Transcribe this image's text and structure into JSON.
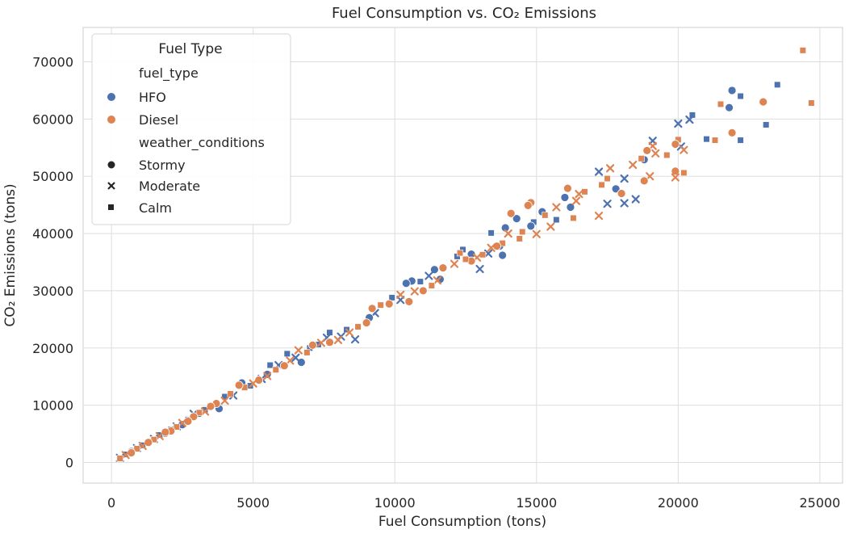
{
  "chart_data": {
    "type": "scatter",
    "title": "Fuel Consumption vs. CO₂ Emissions",
    "xlabel": "Fuel Consumption (tons)",
    "ylabel": "CO₂ Emissions (tons)",
    "xlim": [
      -1000,
      25800
    ],
    "ylim": [
      -3600,
      76000
    ],
    "xticks": [
      0,
      5000,
      10000,
      15000,
      20000,
      25000
    ],
    "yticks": [
      0,
      10000,
      20000,
      30000,
      40000,
      50000,
      60000,
      70000
    ],
    "grid": true,
    "legend": {
      "title": "Fuel Type",
      "placement": "top-left",
      "hue_title": "fuel_type",
      "style_title": "weather_conditions",
      "hue_entries": [
        {
          "label": "HFO",
          "color": "#4c72b0"
        },
        {
          "label": "Diesel",
          "color": "#dd8452"
        }
      ],
      "style_entries": [
        {
          "label": "Stormy",
          "marker": "circle"
        },
        {
          "label": "Moderate",
          "marker": "x"
        },
        {
          "label": "Calm",
          "marker": "square"
        }
      ]
    },
    "series": [
      {
        "fuel_type": "HFO",
        "color": "#4c72b0",
        "points": [
          {
            "x": 21900,
            "y": 65000,
            "w": "Stormy"
          },
          {
            "x": 21800,
            "y": 62000,
            "w": "Stormy"
          },
          {
            "x": 23100,
            "y": 59000,
            "w": "Calm"
          },
          {
            "x": 23500,
            "y": 66000,
            "w": "Calm"
          },
          {
            "x": 22200,
            "y": 64000,
            "w": "Calm"
          },
          {
            "x": 22200,
            "y": 56300,
            "w": "Calm"
          },
          {
            "x": 21000,
            "y": 56500,
            "w": "Calm"
          },
          {
            "x": 20500,
            "y": 60700,
            "w": "Calm"
          },
          {
            "x": 20400,
            "y": 59900,
            "w": "Moderate"
          },
          {
            "x": 20000,
            "y": 59200,
            "w": "Moderate"
          },
          {
            "x": 20100,
            "y": 55200,
            "w": "Moderate"
          },
          {
            "x": 19100,
            "y": 56200,
            "w": "Moderate"
          },
          {
            "x": 18800,
            "y": 52900,
            "w": "Stormy"
          },
          {
            "x": 17500,
            "y": 45200,
            "w": "Moderate"
          },
          {
            "x": 17800,
            "y": 47800,
            "w": "Stormy"
          },
          {
            "x": 17200,
            "y": 50800,
            "w": "Moderate"
          },
          {
            "x": 18100,
            "y": 49600,
            "w": "Moderate"
          },
          {
            "x": 18100,
            "y": 45300,
            "w": "Moderate"
          },
          {
            "x": 18500,
            "y": 46000,
            "w": "Moderate"
          },
          {
            "x": 16200,
            "y": 44600,
            "w": "Stormy"
          },
          {
            "x": 16000,
            "y": 46300,
            "w": "Stormy"
          },
          {
            "x": 15700,
            "y": 42400,
            "w": "Calm"
          },
          {
            "x": 15200,
            "y": 43800,
            "w": "Stormy"
          },
          {
            "x": 14900,
            "y": 42000,
            "w": "Calm"
          },
          {
            "x": 14800,
            "y": 41300,
            "w": "Stormy"
          },
          {
            "x": 14300,
            "y": 42600,
            "w": "Stormy"
          },
          {
            "x": 13900,
            "y": 41000,
            "w": "Stormy"
          },
          {
            "x": 13700,
            "y": 37800,
            "w": "Stormy"
          },
          {
            "x": 13800,
            "y": 36200,
            "w": "Stormy"
          },
          {
            "x": 13400,
            "y": 40100,
            "w": "Calm"
          },
          {
            "x": 13300,
            "y": 36500,
            "w": "Moderate"
          },
          {
            "x": 12700,
            "y": 36400,
            "w": "Stormy"
          },
          {
            "x": 12400,
            "y": 37200,
            "w": "Calm"
          },
          {
            "x": 13000,
            "y": 33800,
            "w": "Moderate"
          },
          {
            "x": 12200,
            "y": 36000,
            "w": "Calm"
          },
          {
            "x": 11600,
            "y": 32000,
            "w": "Stormy"
          },
          {
            "x": 11400,
            "y": 33700,
            "w": "Stormy"
          },
          {
            "x": 11200,
            "y": 32600,
            "w": "Moderate"
          },
          {
            "x": 10600,
            "y": 31700,
            "w": "Stormy"
          },
          {
            "x": 10900,
            "y": 31600,
            "w": "Calm"
          },
          {
            "x": 10400,
            "y": 31300,
            "w": "Stormy"
          },
          {
            "x": 10200,
            "y": 28400,
            "w": "Moderate"
          },
          {
            "x": 9900,
            "y": 28800,
            "w": "Calm"
          },
          {
            "x": 9300,
            "y": 26100,
            "w": "Moderate"
          },
          {
            "x": 9100,
            "y": 25300,
            "w": "Stormy"
          },
          {
            "x": 8300,
            "y": 23200,
            "w": "Calm"
          },
          {
            "x": 8100,
            "y": 22000,
            "w": "Moderate"
          },
          {
            "x": 8600,
            "y": 21500,
            "w": "Moderate"
          },
          {
            "x": 7700,
            "y": 22700,
            "w": "Calm"
          },
          {
            "x": 7600,
            "y": 21800,
            "w": "Moderate"
          },
          {
            "x": 7300,
            "y": 20600,
            "w": "Calm"
          },
          {
            "x": 7000,
            "y": 20000,
            "w": "Calm"
          },
          {
            "x": 6700,
            "y": 17500,
            "w": "Stormy"
          },
          {
            "x": 6500,
            "y": 18300,
            "w": "Moderate"
          },
          {
            "x": 6200,
            "y": 19000,
            "w": "Calm"
          },
          {
            "x": 5900,
            "y": 17000,
            "w": "Moderate"
          },
          {
            "x": 5600,
            "y": 17000,
            "w": "Calm"
          },
          {
            "x": 5500,
            "y": 15400,
            "w": "Stormy"
          },
          {
            "x": 5300,
            "y": 14600,
            "w": "Moderate"
          },
          {
            "x": 4900,
            "y": 13400,
            "w": "Calm"
          },
          {
            "x": 4600,
            "y": 13900,
            "w": "Stormy"
          },
          {
            "x": 4300,
            "y": 11700,
            "w": "Moderate"
          },
          {
            "x": 4000,
            "y": 11500,
            "w": "Calm"
          },
          {
            "x": 3800,
            "y": 9400,
            "w": "Stormy"
          },
          {
            "x": 3500,
            "y": 9900,
            "w": "Stormy"
          },
          {
            "x": 3300,
            "y": 9200,
            "w": "Calm"
          },
          {
            "x": 3100,
            "y": 8600,
            "w": "Stormy"
          },
          {
            "x": 2900,
            "y": 8500,
            "w": "Moderate"
          },
          {
            "x": 2700,
            "y": 7500,
            "w": "Calm"
          },
          {
            "x": 2500,
            "y": 6600,
            "w": "Stormy"
          },
          {
            "x": 2300,
            "y": 6300,
            "w": "Moderate"
          },
          {
            "x": 2100,
            "y": 5800,
            "w": "Calm"
          },
          {
            "x": 1900,
            "y": 5100,
            "w": "Stormy"
          },
          {
            "x": 1700,
            "y": 4800,
            "w": "Calm"
          },
          {
            "x": 1500,
            "y": 4100,
            "w": "Moderate"
          },
          {
            "x": 1300,
            "y": 3600,
            "w": "Stormy"
          },
          {
            "x": 1100,
            "y": 3000,
            "w": "Calm"
          },
          {
            "x": 900,
            "y": 2500,
            "w": "Moderate"
          },
          {
            "x": 700,
            "y": 1900,
            "w": "Stormy"
          },
          {
            "x": 500,
            "y": 1400,
            "w": "Calm"
          },
          {
            "x": 300,
            "y": 800,
            "w": "Moderate"
          }
        ]
      },
      {
        "fuel_type": "Diesel",
        "color": "#dd8452",
        "points": [
          {
            "x": 24400,
            "y": 72000,
            "w": "Calm"
          },
          {
            "x": 24700,
            "y": 62800,
            "w": "Calm"
          },
          {
            "x": 23000,
            "y": 63000,
            "w": "Stormy"
          },
          {
            "x": 21500,
            "y": 62600,
            "w": "Calm"
          },
          {
            "x": 21300,
            "y": 56300,
            "w": "Calm"
          },
          {
            "x": 21900,
            "y": 57600,
            "w": "Stormy"
          },
          {
            "x": 20200,
            "y": 50600,
            "w": "Calm"
          },
          {
            "x": 19900,
            "y": 50900,
            "w": "Stormy"
          },
          {
            "x": 19900,
            "y": 49800,
            "w": "Moderate"
          },
          {
            "x": 20000,
            "y": 56400,
            "w": "Calm"
          },
          {
            "x": 20200,
            "y": 54600,
            "w": "Moderate"
          },
          {
            "x": 19900,
            "y": 55600,
            "w": "Stormy"
          },
          {
            "x": 19600,
            "y": 53700,
            "w": "Calm"
          },
          {
            "x": 19200,
            "y": 54000,
            "w": "Moderate"
          },
          {
            "x": 19100,
            "y": 55300,
            "w": "Moderate"
          },
          {
            "x": 18900,
            "y": 54500,
            "w": "Stormy"
          },
          {
            "x": 18700,
            "y": 53100,
            "w": "Calm"
          },
          {
            "x": 19000,
            "y": 50000,
            "w": "Moderate"
          },
          {
            "x": 18800,
            "y": 49200,
            "w": "Stormy"
          },
          {
            "x": 18400,
            "y": 52000,
            "w": "Moderate"
          },
          {
            "x": 18000,
            "y": 47000,
            "w": "Stormy"
          },
          {
            "x": 17600,
            "y": 51400,
            "w": "Moderate"
          },
          {
            "x": 17500,
            "y": 49600,
            "w": "Calm"
          },
          {
            "x": 17300,
            "y": 48500,
            "w": "Calm"
          },
          {
            "x": 17200,
            "y": 43100,
            "w": "Moderate"
          },
          {
            "x": 16700,
            "y": 47300,
            "w": "Calm"
          },
          {
            "x": 16500,
            "y": 46900,
            "w": "Moderate"
          },
          {
            "x": 16400,
            "y": 45700,
            "w": "Moderate"
          },
          {
            "x": 16300,
            "y": 42700,
            "w": "Calm"
          },
          {
            "x": 16100,
            "y": 47900,
            "w": "Stormy"
          },
          {
            "x": 15700,
            "y": 44600,
            "w": "Moderate"
          },
          {
            "x": 15500,
            "y": 41200,
            "w": "Moderate"
          },
          {
            "x": 15300,
            "y": 43200,
            "w": "Calm"
          },
          {
            "x": 15000,
            "y": 39900,
            "w": "Moderate"
          },
          {
            "x": 14800,
            "y": 45400,
            "w": "Stormy"
          },
          {
            "x": 14700,
            "y": 44900,
            "w": "Stormy"
          },
          {
            "x": 14500,
            "y": 40300,
            "w": "Calm"
          },
          {
            "x": 14400,
            "y": 39100,
            "w": "Calm"
          },
          {
            "x": 14100,
            "y": 43500,
            "w": "Stormy"
          },
          {
            "x": 14000,
            "y": 40000,
            "w": "Moderate"
          },
          {
            "x": 13800,
            "y": 38300,
            "w": "Calm"
          },
          {
            "x": 13600,
            "y": 37800,
            "w": "Stormy"
          },
          {
            "x": 13400,
            "y": 37500,
            "w": "Moderate"
          },
          {
            "x": 13100,
            "y": 36300,
            "w": "Calm"
          },
          {
            "x": 12900,
            "y": 35800,
            "w": "Moderate"
          },
          {
            "x": 12700,
            "y": 35200,
            "w": "Stormy"
          },
          {
            "x": 12500,
            "y": 35500,
            "w": "Calm"
          },
          {
            "x": 12300,
            "y": 36600,
            "w": "Calm"
          },
          {
            "x": 12100,
            "y": 34700,
            "w": "Moderate"
          },
          {
            "x": 11700,
            "y": 34000,
            "w": "Stormy"
          },
          {
            "x": 11500,
            "y": 31800,
            "w": "Moderate"
          },
          {
            "x": 11300,
            "y": 30900,
            "w": "Calm"
          },
          {
            "x": 11000,
            "y": 30000,
            "w": "Stormy"
          },
          {
            "x": 10700,
            "y": 29900,
            "w": "Moderate"
          },
          {
            "x": 10500,
            "y": 28100,
            "w": "Stormy"
          },
          {
            "x": 10200,
            "y": 29300,
            "w": "Moderate"
          },
          {
            "x": 9800,
            "y": 27700,
            "w": "Stormy"
          },
          {
            "x": 9500,
            "y": 27500,
            "w": "Calm"
          },
          {
            "x": 9200,
            "y": 26900,
            "w": "Stormy"
          },
          {
            "x": 9000,
            "y": 24400,
            "w": "Stormy"
          },
          {
            "x": 8700,
            "y": 23700,
            "w": "Calm"
          },
          {
            "x": 8400,
            "y": 22700,
            "w": "Moderate"
          },
          {
            "x": 8000,
            "y": 21400,
            "w": "Moderate"
          },
          {
            "x": 7700,
            "y": 21000,
            "w": "Stormy"
          },
          {
            "x": 7400,
            "y": 20900,
            "w": "Moderate"
          },
          {
            "x": 7100,
            "y": 20500,
            "w": "Stormy"
          },
          {
            "x": 6900,
            "y": 19200,
            "w": "Calm"
          },
          {
            "x": 6600,
            "y": 19600,
            "w": "Moderate"
          },
          {
            "x": 6300,
            "y": 17800,
            "w": "Moderate"
          },
          {
            "x": 6100,
            "y": 16900,
            "w": "Stormy"
          },
          {
            "x": 5800,
            "y": 16200,
            "w": "Calm"
          },
          {
            "x": 5500,
            "y": 15100,
            "w": "Moderate"
          },
          {
            "x": 5200,
            "y": 14400,
            "w": "Stormy"
          },
          {
            "x": 5000,
            "y": 13800,
            "w": "Moderate"
          },
          {
            "x": 4700,
            "y": 13100,
            "w": "Calm"
          },
          {
            "x": 4500,
            "y": 13500,
            "w": "Stormy"
          },
          {
            "x": 4200,
            "y": 12000,
            "w": "Calm"
          },
          {
            "x": 4000,
            "y": 10800,
            "w": "Moderate"
          },
          {
            "x": 3700,
            "y": 10300,
            "w": "Stormy"
          },
          {
            "x": 3500,
            "y": 9800,
            "w": "Stormy"
          },
          {
            "x": 3300,
            "y": 8900,
            "w": "Moderate"
          },
          {
            "x": 3100,
            "y": 8700,
            "w": "Calm"
          },
          {
            "x": 2900,
            "y": 8000,
            "w": "Stormy"
          },
          {
            "x": 2700,
            "y": 7200,
            "w": "Stormy"
          },
          {
            "x": 2500,
            "y": 6900,
            "w": "Moderate"
          },
          {
            "x": 2300,
            "y": 6200,
            "w": "Calm"
          },
          {
            "x": 2100,
            "y": 5500,
            "w": "Stormy"
          },
          {
            "x": 1900,
            "y": 5300,
            "w": "Stormy"
          },
          {
            "x": 1700,
            "y": 4600,
            "w": "Moderate"
          },
          {
            "x": 1500,
            "y": 4000,
            "w": "Calm"
          },
          {
            "x": 1300,
            "y": 3500,
            "w": "Stormy"
          },
          {
            "x": 1100,
            "y": 2900,
            "w": "Moderate"
          },
          {
            "x": 900,
            "y": 2400,
            "w": "Calm"
          },
          {
            "x": 700,
            "y": 1700,
            "w": "Stormy"
          },
          {
            "x": 500,
            "y": 1300,
            "w": "Moderate"
          },
          {
            "x": 300,
            "y": 700,
            "w": "Calm"
          }
        ]
      }
    ]
  }
}
